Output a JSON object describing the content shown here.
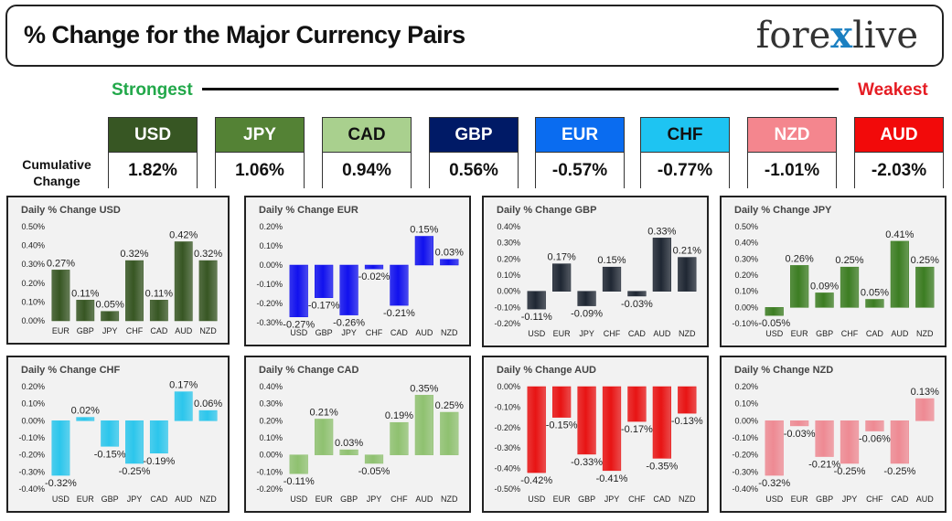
{
  "header": {
    "title": "% Change for the Major Currency Pairs",
    "logo_left": "fore",
    "logo_x": "x",
    "logo_right": "live"
  },
  "scale": {
    "strongest_label": "Strongest",
    "weakest_label": "Weakest",
    "cumulative_label_line1": "Cumulative",
    "cumulative_label_line2": "Change"
  },
  "currencies": [
    {
      "code": "USD",
      "value": "1.82%",
      "bg": "#375623",
      "fg": "#ffffff"
    },
    {
      "code": "JPY",
      "value": "1.06%",
      "bg": "#548235",
      "fg": "#ffffff"
    },
    {
      "code": "CAD",
      "value": "0.94%",
      "bg": "#a9d08e",
      "fg": "#111111"
    },
    {
      "code": "GBP",
      "value": "0.56%",
      "bg": "#001a66",
      "fg": "#ffffff"
    },
    {
      "code": "EUR",
      "value": "-0.57%",
      "bg": "#0a6cf0",
      "fg": "#ffffff"
    },
    {
      "code": "CHF",
      "value": "-0.77%",
      "bg": "#1ec4f2",
      "fg": "#111111"
    },
    {
      "code": "NZD",
      "value": "-1.01%",
      "bg": "#f4868e",
      "fg": "#ffffff"
    },
    {
      "code": "AUD",
      "value": "-2.03%",
      "bg": "#f20a0a",
      "fg": "#ffffff"
    }
  ],
  "chart_data": [
    {
      "type": "bar",
      "title": "Daily % Change USD",
      "categories": [
        "EUR",
        "GBP",
        "JPY",
        "CHF",
        "CAD",
        "AUD",
        "NZD"
      ],
      "values": [
        0.27,
        0.11,
        0.05,
        0.32,
        0.11,
        0.42,
        0.32
      ],
      "labels": [
        "0.27%",
        "0.11%",
        "0.05%",
        "0.32%",
        "0.11%",
        "0.42%",
        "0.32%"
      ],
      "ylim": [
        0,
        0.5
      ],
      "yticks": [
        0,
        0.1,
        0.2,
        0.3,
        0.4,
        0.5
      ],
      "ytick_labels": [
        "0.00%",
        "0.10%",
        "0.20%",
        "0.30%",
        "0.40%",
        "0.50%"
      ],
      "color": "#375623"
    },
    {
      "type": "bar",
      "title": "Daily % Change EUR",
      "categories": [
        "USD",
        "GBP",
        "JPY",
        "CHF",
        "CAD",
        "AUD",
        "NZD"
      ],
      "values": [
        -0.27,
        -0.17,
        -0.26,
        -0.02,
        -0.21,
        0.15,
        0.03
      ],
      "labels": [
        "-0.27%",
        "-0.17%",
        "-0.26%",
        "-0.02%",
        "-0.21%",
        "0.15%",
        "0.03%"
      ],
      "ylim": [
        -0.3,
        0.2
      ],
      "yticks": [
        -0.3,
        -0.2,
        -0.1,
        0,
        0.1,
        0.2
      ],
      "ytick_labels": [
        "-0.30%",
        "-0.20%",
        "-0.10%",
        "0.00%",
        "0.10%",
        "0.20%"
      ],
      "color": "#1111ee"
    },
    {
      "type": "bar",
      "title": "Daily % Change GBP",
      "categories": [
        "USD",
        "EUR",
        "JPY",
        "CHF",
        "CAD",
        "AUD",
        "NZD"
      ],
      "values": [
        -0.11,
        0.17,
        -0.09,
        0.15,
        -0.03,
        0.33,
        0.21
      ],
      "labels": [
        "-0.11%",
        "0.17%",
        "-0.09%",
        "0.15%",
        "-0.03%",
        "0.33%",
        "0.21%"
      ],
      "ylim": [
        -0.2,
        0.4
      ],
      "yticks": [
        -0.2,
        -0.1,
        0,
        0.1,
        0.2,
        0.3,
        0.4
      ],
      "ytick_labels": [
        "-0.20%",
        "-0.10%",
        "0.00%",
        "0.10%",
        "0.20%",
        "0.30%",
        "0.40%"
      ],
      "color": "#1f2733"
    },
    {
      "type": "bar",
      "title": "Daily % Change JPY",
      "categories": [
        "USD",
        "EUR",
        "GBP",
        "CHF",
        "CAD",
        "AUD",
        "NZD"
      ],
      "values": [
        -0.05,
        0.26,
        0.09,
        0.25,
        0.05,
        0.41,
        0.25
      ],
      "labels": [
        "-0.05%",
        "0.26%",
        "0.09%",
        "0.25%",
        "0.05%",
        "0.41%",
        "0.25%"
      ],
      "ylim": [
        -0.1,
        0.5
      ],
      "yticks": [
        -0.1,
        0,
        0.1,
        0.2,
        0.3,
        0.4,
        0.5
      ],
      "ytick_labels": [
        "-0.10%",
        "0.00%",
        "0.10%",
        "0.20%",
        "0.30%",
        "0.40%",
        "0.50%"
      ],
      "color": "#3c7d22"
    },
    {
      "type": "bar",
      "title": "Daily % Change CHF",
      "categories": [
        "USD",
        "EUR",
        "GBP",
        "JPY",
        "CAD",
        "AUD",
        "NZD"
      ],
      "values": [
        -0.32,
        0.02,
        -0.15,
        -0.25,
        -0.19,
        0.17,
        0.06
      ],
      "labels": [
        "-0.32%",
        "0.02%",
        "-0.15%",
        "-0.25%",
        "-0.19%",
        "0.17%",
        "0.06%"
      ],
      "ylim": [
        -0.4,
        0.2
      ],
      "yticks": [
        -0.4,
        -0.3,
        -0.2,
        -0.1,
        0,
        0.1,
        0.2
      ],
      "ytick_labels": [
        "-0.40%",
        "-0.30%",
        "-0.20%",
        "-0.10%",
        "0.00%",
        "0.10%",
        "0.20%"
      ],
      "color": "#2cc6ec"
    },
    {
      "type": "bar",
      "title": "Daily % Change CAD",
      "categories": [
        "USD",
        "EUR",
        "GBP",
        "JPY",
        "CHF",
        "AUD",
        "NZD"
      ],
      "values": [
        -0.11,
        0.21,
        0.03,
        -0.05,
        0.19,
        0.35,
        0.25
      ],
      "labels": [
        "-0.11%",
        "0.21%",
        "0.03%",
        "-0.05%",
        "0.19%",
        "0.35%",
        "0.25%"
      ],
      "ylim": [
        -0.2,
        0.4
      ],
      "yticks": [
        -0.2,
        -0.1,
        0,
        0.1,
        0.2,
        0.3,
        0.4
      ],
      "ytick_labels": [
        "-0.20%",
        "-0.10%",
        "0.00%",
        "0.10%",
        "0.20%",
        "0.30%",
        "0.40%"
      ],
      "color": "#8fc170"
    },
    {
      "type": "bar",
      "title": "Daily % Change AUD",
      "categories": [
        "USD",
        "EUR",
        "GBP",
        "JPY",
        "CHF",
        "CAD",
        "NZD"
      ],
      "values": [
        -0.42,
        -0.15,
        -0.33,
        -0.41,
        -0.17,
        -0.35,
        -0.13
      ],
      "labels": [
        "-0.42%",
        "-0.15%",
        "-0.33%",
        "-0.41%",
        "-0.17%",
        "-0.35%",
        "-0.13%"
      ],
      "ylim": [
        -0.5,
        0
      ],
      "yticks": [
        -0.5,
        -0.4,
        -0.3,
        -0.2,
        -0.1,
        0
      ],
      "ytick_labels": [
        "-0.50%",
        "-0.40%",
        "-0.30%",
        "-0.20%",
        "-0.10%",
        "0.00%"
      ],
      "color": "#e81414"
    },
    {
      "type": "bar",
      "title": "Daily % Change NZD",
      "categories": [
        "USD",
        "EUR",
        "GBP",
        "JPY",
        "CHF",
        "CAD",
        "AUD"
      ],
      "values": [
        -0.32,
        -0.03,
        -0.21,
        -0.25,
        -0.06,
        -0.25,
        0.13
      ],
      "labels": [
        "-0.32%",
        "-0.03%",
        "-0.21%",
        "-0.25%",
        "-0.06%",
        "-0.25%",
        "0.13%"
      ],
      "ylim": [
        -0.4,
        0.2
      ],
      "yticks": [
        -0.4,
        -0.3,
        -0.2,
        -0.1,
        0,
        0.1,
        0.2
      ],
      "ytick_labels": [
        "-0.40%",
        "-0.30%",
        "-0.20%",
        "-0.10%",
        "0.00%",
        "0.10%",
        "0.20%"
      ],
      "color": "#ee8a93"
    }
  ]
}
